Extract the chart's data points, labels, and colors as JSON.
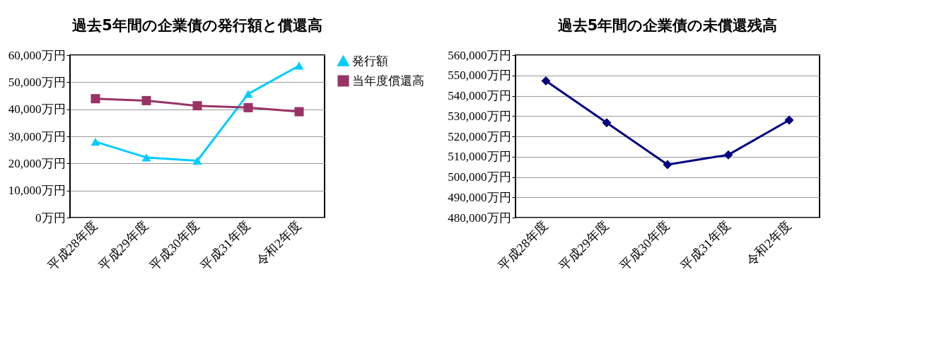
{
  "chart_data": [
    {
      "type": "line",
      "title": "過去5年間の企業債の発行額と償還高",
      "categories": [
        "平成28年度",
        "平成29年度",
        "平成30年度",
        "平成31年度",
        "令和2年度"
      ],
      "series": [
        {
          "name": "発行額",
          "color": "#00ccff",
          "marker": "triangle",
          "values": [
            28000,
            22200,
            21000,
            45700,
            56100
          ]
        },
        {
          "name": "当年度償還高",
          "color": "#993366",
          "marker": "square",
          "values": [
            43900,
            43200,
            41300,
            40600,
            39100
          ]
        }
      ],
      "ylim": [
        0,
        60000
      ],
      "yticks": [
        {
          "value": 0,
          "label": "0万円"
        },
        {
          "value": 10000,
          "label": "10,000万円"
        },
        {
          "value": 20000,
          "label": "20,000万円"
        },
        {
          "value": 30000,
          "label": "30,000万円"
        },
        {
          "value": 40000,
          "label": "40,000万円"
        },
        {
          "value": 50000,
          "label": "50,000万円"
        },
        {
          "value": 60000,
          "label": "60,000万円"
        }
      ],
      "grid": "y",
      "legend": "right"
    },
    {
      "type": "line",
      "title": "過去5年間の企業債の未償還残高",
      "categories": [
        "平成28年度",
        "平成29年度",
        "平成30年度",
        "平成31年度",
        "令和2年度"
      ],
      "series": [
        {
          "color": "#000080",
          "marker": "diamond",
          "values": [
            547300,
            526700,
            506100,
            510900,
            528000
          ]
        }
      ],
      "ylim": [
        480000,
        560000
      ],
      "yticks": [
        {
          "value": 480000,
          "label": "480,000万円"
        },
        {
          "value": 490000,
          "label": "490,000万円"
        },
        {
          "value": 500000,
          "label": "500,000万円"
        },
        {
          "value": 510000,
          "label": "510,000万円"
        },
        {
          "value": 520000,
          "label": "520,000万円"
        },
        {
          "value": 530000,
          "label": "530,000万円"
        },
        {
          "value": 540000,
          "label": "540,000万円"
        },
        {
          "value": 550000,
          "label": "550,000万円"
        },
        {
          "value": 560000,
          "label": "560,000万円"
        }
      ],
      "grid": "y"
    }
  ]
}
